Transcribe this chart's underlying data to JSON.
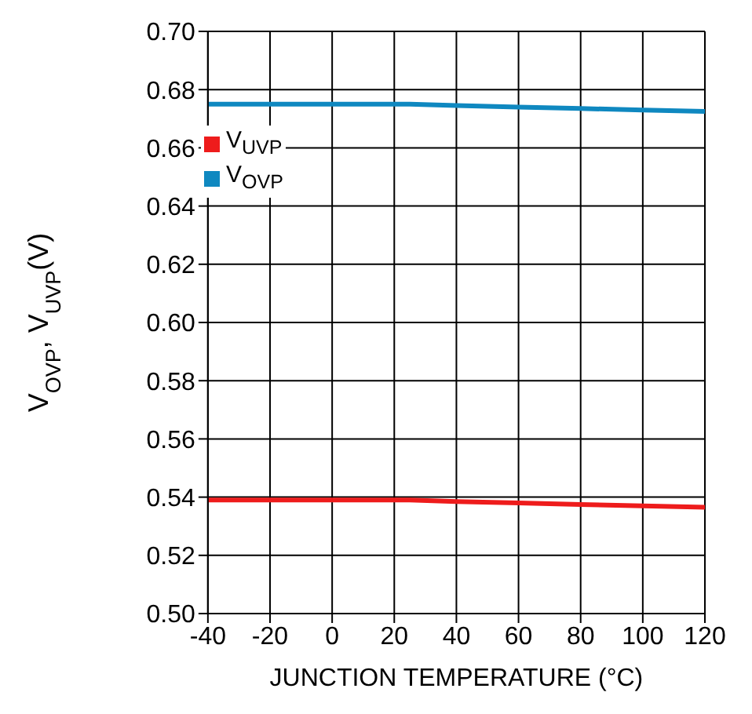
{
  "chart_data": {
    "type": "line",
    "xlabel": "JUNCTION TEMPERATURE (°C)",
    "ylabel": "V$_{OVP}$, V$_{UVP}$(V)",
    "x": [
      -40,
      -20,
      0,
      20,
      25,
      40,
      60,
      80,
      100,
      120
    ],
    "series": [
      {
        "name": "V$_{UVP}$",
        "color": "#ee1c1c",
        "values": [
          0.539,
          0.539,
          0.539,
          0.539,
          0.539,
          0.5385,
          0.538,
          0.5375,
          0.537,
          0.5365
        ]
      },
      {
        "name": "V$_{OVP}$",
        "color": "#0f88c0",
        "values": [
          0.675,
          0.675,
          0.675,
          0.675,
          0.675,
          0.6745,
          0.674,
          0.6735,
          0.673,
          0.6725
        ]
      }
    ],
    "xlim": [
      -40,
      120
    ],
    "xticks": [
      -40,
      -20,
      0,
      20,
      40,
      60,
      80,
      100,
      120
    ],
    "ylim": [
      0.5,
      0.7
    ],
    "yticks": [
      {
        "value": 0.5,
        "label": "0.50"
      },
      0.52,
      0.54,
      0.56,
      0.58,
      {
        "value": 0.6,
        "label": "0.60"
      },
      0.62,
      0.64,
      0.66,
      0.68,
      {
        "value": 0.7,
        "label": "0.70"
      }
    ],
    "grid": true,
    "legend": "top left",
    "marker": "none",
    "line_style": "solid"
  }
}
